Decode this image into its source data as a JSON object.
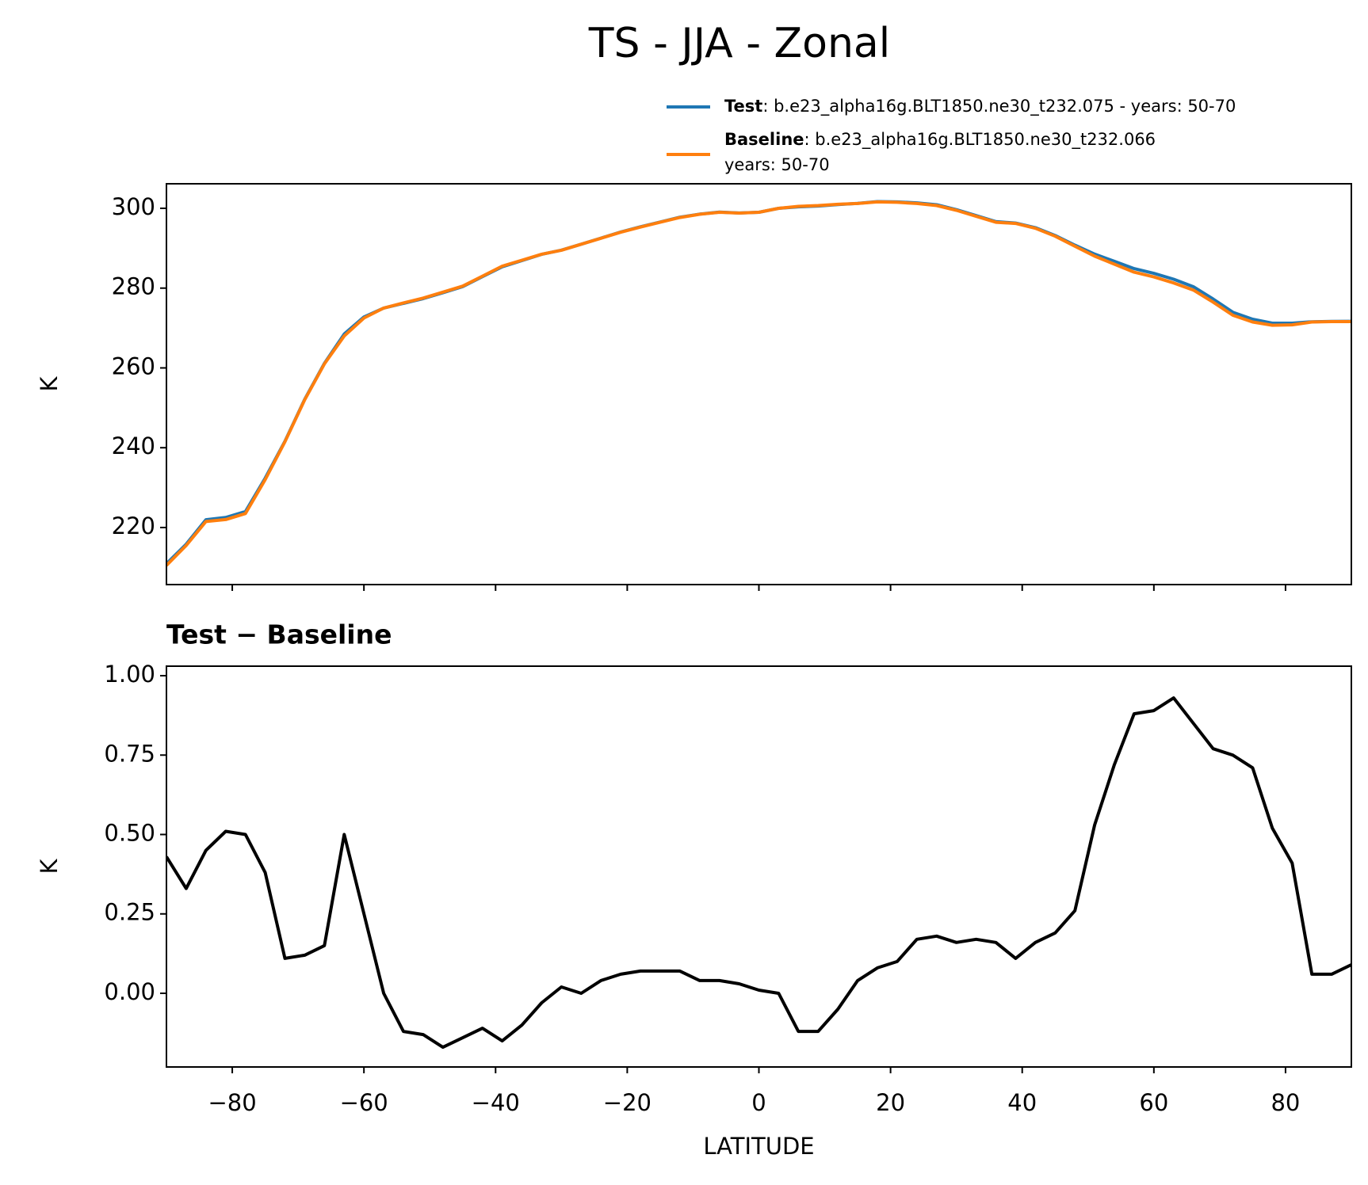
{
  "title": "TS - JJA - Zonal",
  "chart_data": [
    {
      "type": "line",
      "ylabel": "K",
      "x": [
        -90,
        -87,
        -84,
        -81,
        -78,
        -75,
        -72,
        -69,
        -66,
        -63,
        -60,
        -57,
        -54,
        -51,
        -48,
        -45,
        -42,
        -39,
        -36,
        -33,
        -30,
        -27,
        -24,
        -21,
        -18,
        -15,
        -12,
        -9,
        -6,
        -3,
        0,
        3,
        6,
        9,
        12,
        15,
        18,
        21,
        24,
        27,
        30,
        33,
        36,
        39,
        42,
        45,
        48,
        51,
        54,
        57,
        60,
        63,
        66,
        69,
        72,
        75,
        78,
        81,
        84,
        87,
        90
      ],
      "series": [
        {
          "name": "Test",
          "label_lines": [
            ": b.e23_alpha16g.BLT1850.ne30_t232.075 - years: 50-70"
          ],
          "color": "#1f77b4",
          "values": [
            210.93,
            215.83,
            221.95,
            222.51,
            224.0,
            232.38,
            241.61,
            252.12,
            261.15,
            268.5,
            272.75,
            275.0,
            276.18,
            277.37,
            278.83,
            280.36,
            282.89,
            285.35,
            286.9,
            288.47,
            289.52,
            291.0,
            292.54,
            294.06,
            295.37,
            296.57,
            297.77,
            298.54,
            299.04,
            298.83,
            299.01,
            300.0,
            300.38,
            300.58,
            300.95,
            301.24,
            301.68,
            301.6,
            301.37,
            300.88,
            299.66,
            298.17,
            296.66,
            296.31,
            295.16,
            293.19,
            290.76,
            288.53,
            286.72,
            284.88,
            283.69,
            282.23,
            280.35,
            277.27,
            273.95,
            272.21,
            271.22,
            271.21,
            271.56,
            271.66,
            271.69
          ]
        },
        {
          "name": "Baseline",
          "label_lines": [
            ": b.e23_alpha16g.BLT1850.ne30_t232.066",
            "years: 50-70"
          ],
          "color": "#ff7f0e",
          "values": [
            210.5,
            215.5,
            221.5,
            222,
            223.5,
            232,
            241.5,
            252,
            261,
            268,
            272.5,
            275,
            276.3,
            277.5,
            279,
            280.5,
            283,
            285.5,
            287,
            288.5,
            289.5,
            291,
            292.5,
            294,
            295.3,
            296.5,
            297.7,
            298.5,
            299,
            298.8,
            299,
            300,
            300.5,
            300.7,
            301,
            301.2,
            301.6,
            301.5,
            301.2,
            300.7,
            299.5,
            298,
            296.5,
            296.2,
            295,
            293,
            290.5,
            288,
            286,
            284,
            282.8,
            281.3,
            279.5,
            276.5,
            273.2,
            271.5,
            270.7,
            270.8,
            271.5,
            271.6,
            271.6
          ]
        }
      ],
      "xlim": [
        -90,
        90
      ],
      "xticks": [
        -80,
        -60,
        -40,
        -20,
        0,
        20,
        40,
        60,
        80
      ],
      "xtick_labels": false,
      "ylim": [
        205.7,
        306.15
      ],
      "yticks": [
        220,
        240,
        260,
        280,
        300
      ]
    },
    {
      "type": "line",
      "title": "Test − Baseline",
      "ylabel": "K",
      "xlabel": "LATITUDE",
      "x": [
        -90,
        -87,
        -84,
        -81,
        -78,
        -75,
        -72,
        -69,
        -66,
        -63,
        -60,
        -57,
        -54,
        -51,
        -48,
        -45,
        -42,
        -39,
        -36,
        -33,
        -30,
        -27,
        -24,
        -21,
        -18,
        -15,
        -12,
        -9,
        -6,
        -3,
        0,
        3,
        6,
        9,
        12,
        15,
        18,
        21,
        24,
        27,
        30,
        33,
        36,
        39,
        42,
        45,
        48,
        51,
        54,
        57,
        60,
        63,
        66,
        69,
        72,
        75,
        78,
        81,
        84,
        87,
        90
      ],
      "series": [
        {
          "color": "#000000",
          "values": [
            0.43,
            0.33,
            0.45,
            0.51,
            0.5,
            0.38,
            0.11,
            0.12,
            0.15,
            0.5,
            0.25,
            0.0,
            -0.12,
            -0.13,
            -0.17,
            -0.14,
            -0.11,
            -0.15,
            -0.1,
            -0.03,
            0.02,
            0.0,
            0.04,
            0.06,
            0.07,
            0.07,
            0.07,
            0.04,
            0.04,
            0.03,
            0.01,
            0.0,
            -0.12,
            -0.12,
            -0.05,
            0.04,
            0.08,
            0.1,
            0.17,
            0.18,
            0.16,
            0.17,
            0.16,
            0.11,
            0.16,
            0.19,
            0.26,
            0.53,
            0.72,
            0.88,
            0.89,
            0.93,
            0.85,
            0.77,
            0.75,
            0.71,
            0.52,
            0.41,
            0.06,
            0.06,
            0.09
          ]
        }
      ],
      "xlim": [
        -90,
        90
      ],
      "xticks": [
        {
          "value": -80,
          "label": "−80"
        },
        {
          "value": -60,
          "label": "−60"
        },
        {
          "value": -40,
          "label": "−40"
        },
        {
          "value": -20,
          "label": "−20"
        },
        0,
        20,
        40,
        60,
        80
      ],
      "xtick_labels": true,
      "ylim": [
        -0.232,
        1.03
      ],
      "yticks": [
        {
          "value": 0,
          "label": "0.00"
        },
        {
          "value": 0.25,
          "label": "0.25"
        },
        {
          "value": 0.5,
          "label": "0.50"
        },
        {
          "value": 0.75,
          "label": "0.75"
        },
        {
          "value": 1,
          "label": "1.00"
        }
      ]
    }
  ]
}
